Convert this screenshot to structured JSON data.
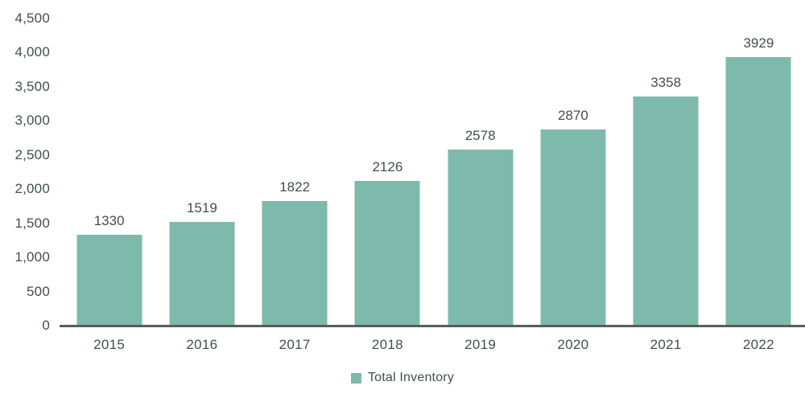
{
  "chart_data": {
    "type": "bar",
    "title": "",
    "xlabel": "",
    "ylabel": "",
    "categories": [
      "2015",
      "2016",
      "2017",
      "2018",
      "2019",
      "2020",
      "2021",
      "2022"
    ],
    "series": [
      {
        "name": "Total Inventory",
        "values": [
          1330,
          1519,
          1822,
          2126,
          2578,
          2870,
          3358,
          3929
        ]
      }
    ],
    "value_labels": [
      "1330",
      "1519",
      "1822",
      "2126",
      "2578",
      "2870",
      "3358",
      "3929"
    ],
    "ylim": [
      0,
      4500
    ],
    "yticks": [
      0,
      500,
      1000,
      1500,
      2000,
      2500,
      3000,
      3500,
      4000,
      4500
    ],
    "ytick_labels": [
      "0",
      "500",
      "1,000",
      "1,500",
      "2,000",
      "2,500",
      "3,000",
      "3,500",
      "4,000",
      "4,500"
    ],
    "grid": false,
    "show_value_labels": true,
    "legend": {
      "label": "Total Inventory",
      "position": "bottom"
    },
    "colors": {
      "bar": "#7dbaac",
      "text": "#434e4e",
      "axis_line": "#595c5c",
      "background": "#ffffff"
    }
  }
}
